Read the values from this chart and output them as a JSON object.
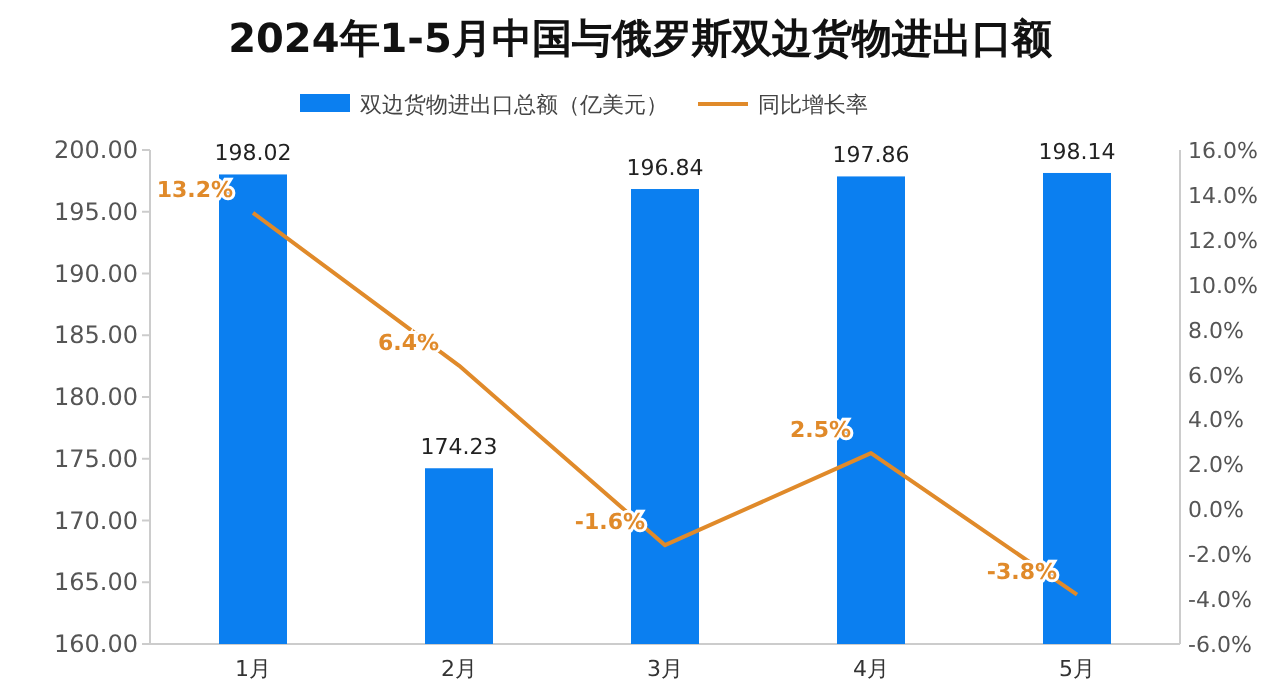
{
  "chart_data": {
    "type": "bar",
    "title": "2024年1-5月中国与俄罗斯双边货物进出口额",
    "categories": [
      "1月",
      "2月",
      "3月",
      "4月",
      "5月"
    ],
    "series": [
      {
        "name": "双边货物进出口总额（亿美元）",
        "color": "#0b7ff0",
        "values": [
          198.02,
          174.23,
          196.84,
          197.86,
          198.14
        ],
        "value_labels": [
          "198.02",
          "174.23",
          "196.84",
          "197.86",
          "198.14"
        ]
      },
      {
        "name": "同比增长率",
        "type": "line",
        "axis": "y2",
        "color": "#e08a2a",
        "values": [
          13.2,
          6.4,
          -1.6,
          2.5,
          -3.8
        ],
        "value_labels": [
          "13.2%",
          "6.4%",
          "-1.6%",
          "2.5%",
          "-3.8%"
        ]
      }
    ],
    "ylim": [
      160,
      200
    ],
    "yticks": [
      {
        "value": 160,
        "label": "160.00"
      },
      {
        "value": 165,
        "label": "165.00"
      },
      {
        "value": 170,
        "label": "170.00"
      },
      {
        "value": 175,
        "label": "175.00"
      },
      {
        "value": 180,
        "label": "180.00"
      },
      {
        "value": 185,
        "label": "185.00"
      },
      {
        "value": 190,
        "label": "190.00"
      },
      {
        "value": 195,
        "label": "195.00"
      },
      {
        "value": 200,
        "label": "200.00"
      }
    ],
    "y2lim": [
      -6,
      16
    ],
    "y2ticks": [
      {
        "value": -6,
        "label": "-6.0%"
      },
      {
        "value": -4,
        "label": "-4.0%"
      },
      {
        "value": -2,
        "label": "-2.0%"
      },
      {
        "value": 0,
        "label": "0.0%"
      },
      {
        "value": 2,
        "label": "2.0%"
      },
      {
        "value": 4,
        "label": "4.0%"
      },
      {
        "value": 6,
        "label": "6.0%"
      },
      {
        "value": 8,
        "label": "8.0%"
      },
      {
        "value": 10,
        "label": "10.0%"
      },
      {
        "value": 12,
        "label": "12.0%"
      },
      {
        "value": 14,
        "label": "14.0%"
      },
      {
        "value": 16,
        "label": "16.0%"
      }
    ],
    "legend": "top",
    "grid": false,
    "marker": "none",
    "line_style": "solid"
  }
}
